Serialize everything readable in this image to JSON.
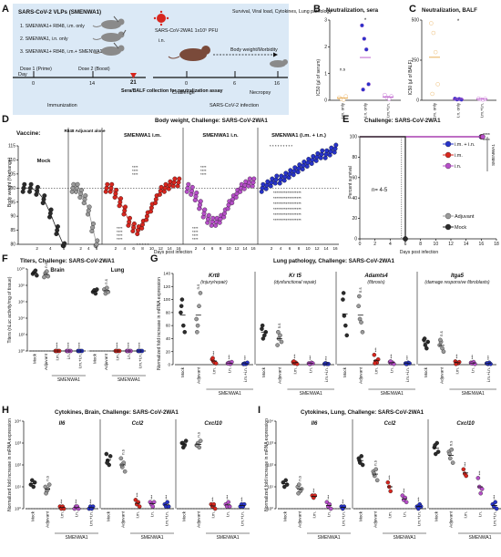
{
  "colors": {
    "mock": "#2b2b2b",
    "adjuvant": "#9a9a9a",
    "im": "#d7261e",
    "in": "#b64fc8",
    "imin": "#2733c9",
    "schemeBg": "#dbe9f6",
    "red": "#d7261e",
    "orange": "#e6a545"
  },
  "panelA": {
    "letter": "A",
    "vlp_title": "SARS-CoV-2 VLPs (SMENWA1)",
    "groups": [
      "1. SMENWA1+ R848, i.m. only",
      "2. SMENWA1, i.n. only",
      "3. SMENWA1+ R848, i.m.+ SMENWA1, i.n."
    ],
    "day_label": "Day",
    "dose1": "Dose 1 (Prime)",
    "dose2": "Dose 2 (Boost)",
    "days": [
      "0",
      "14",
      "21",
      "0",
      "6",
      "16"
    ],
    "immunization": "Immunization",
    "sera": "Sera/BALF collection for neutralization assay",
    "challenge_virus": "SARS-CoV-2WA1 1x10⁵ PFU",
    "route": "i.n.",
    "challenge": "Challenge",
    "necropsy": "Necropsy",
    "body_weight": "Body weight/Morbidity",
    "outcomes": "Survival, Viral load, Cytokines, Lung pathology",
    "infection": "SARS-CoV-2 infection"
  },
  "panelB": {
    "letter": "B",
    "title": "Neutralization, sera",
    "ylabel": "IC50 (µl of serum)",
    "yticks": [
      "0",
      "1",
      "2",
      "3"
    ],
    "xlabels": [
      "i.m. only",
      "i.n. only",
      "i.m.+i.n."
    ],
    "ns": "n.s",
    "star": "*",
    "data": [
      {
        "group": "i.m. only",
        "values": [
          0.1,
          0.05,
          0.02,
          0.15
        ]
      },
      {
        "group": "i.n. only",
        "values": [
          2.8,
          2.3,
          1.9,
          0.6,
          0.4
        ]
      },
      {
        "group": "i.m.+i.n.",
        "values": [
          0.2,
          0.1,
          0.05,
          0.15
        ]
      }
    ]
  },
  "panelC": {
    "letter": "C",
    "title": "Neutralization, BALF",
    "ylabel": "IC50 (µl of BALF)",
    "yticks": [
      "0",
      "250",
      "500"
    ],
    "xlabels": [
      "i.m. only",
      "i.n. only",
      "i.m.+i.n."
    ],
    "star": "*",
    "data": [
      {
        "group": "i.m. only",
        "values": [
          480,
          420,
          300,
          100,
          40
        ]
      },
      {
        "group": "i.n. only",
        "values": [
          10,
          5,
          8,
          4
        ]
      },
      {
        "group": "i.m.+i.n.",
        "values": [
          10,
          6,
          4,
          8
        ]
      }
    ]
  },
  "panelD": {
    "letter": "D",
    "title": "Body weight, Challenge: SARS-CoV-2WA1",
    "vaccine": "Vaccine:",
    "sections": [
      "Mock",
      "R848 Adjuvant alone",
      "SMENWA1 i.m.",
      "SMENWA1 i.n.",
      "SMENWA1 (i.m. + i.n.)"
    ],
    "ylabel": "Body weight (% change)",
    "xlabel": "Days post infection",
    "yticks": [
      "80",
      "85",
      "90",
      "95",
      "100",
      "105",
      "110",
      "115"
    ],
    "xticks": [
      "2",
      "4",
      "6",
      "8",
      "10",
      "12",
      "14",
      "16"
    ],
    "chart_data": {
      "type": "line",
      "y_range": [
        80,
        115
      ],
      "series": [
        {
          "name": "Mock",
          "x": [
            0,
            1,
            2,
            3,
            4,
            5,
            6
          ],
          "values": [
            100,
            100,
            99,
            96,
            91,
            85,
            79
          ]
        },
        {
          "name": "R848 Adjuvant alone",
          "x": [
            0,
            1,
            2,
            3,
            4,
            5,
            6
          ],
          "values": [
            100,
            100,
            98,
            96,
            92,
            86,
            80
          ]
        },
        {
          "name": "SMENWA1 i.m.",
          "x": [
            0,
            1,
            2,
            3,
            4,
            5,
            6,
            7,
            8,
            9,
            10,
            11,
            12,
            13,
            14,
            15,
            16
          ],
          "values": [
            100,
            100,
            98,
            95,
            92,
            88,
            86,
            85,
            87,
            90,
            93,
            96,
            99,
            100,
            101,
            102,
            102
          ]
        },
        {
          "name": "SMENWA1 i.n.",
          "x": [
            0,
            1,
            2,
            3,
            4,
            5,
            6,
            7,
            8,
            9,
            10,
            11,
            12,
            13,
            14,
            15,
            16
          ],
          "values": [
            100,
            99,
            97,
            94,
            91,
            89,
            88,
            88,
            89,
            91,
            94,
            96,
            98,
            100,
            101,
            102,
            102
          ]
        },
        {
          "name": "SMENWA1 (i.m. + i.n.)",
          "x": [
            0,
            1,
            2,
            3,
            4,
            5,
            6,
            7,
            8,
            9,
            10,
            11,
            12,
            13,
            14,
            15,
            16
          ],
          "values": [
            100,
            101,
            102,
            103,
            103,
            104,
            105,
            106,
            107,
            108,
            109,
            110,
            111,
            112,
            112,
            113,
            114
          ]
        }
      ]
    }
  },
  "panelE": {
    "letter": "E",
    "title": "Challenge: SARS-CoV-2WA1",
    "ylabel": "Percent survival",
    "xlabel": "Days post infection",
    "yticks": [
      "0",
      "20",
      "40",
      "60",
      "80",
      "100"
    ],
    "xticks": [
      "0",
      "2",
      "4",
      "6",
      "8",
      "10",
      "12",
      "14",
      "16",
      "18"
    ],
    "n": "n= 4-5",
    "legend": [
      "i.m. + i.n.",
      "i.m.",
      "i.n.",
      "Adjuvant",
      "Mock"
    ],
    "smen": "SMENWA1",
    "sig": [
      "****",
      "****"
    ],
    "chart_data": {
      "type": "line",
      "series": [
        {
          "name": "i.m. + i.n.",
          "x": [
            0,
            16
          ],
          "values": [
            100,
            100
          ]
        },
        {
          "name": "i.m.",
          "x": [
            0,
            16
          ],
          "values": [
            100,
            100
          ]
        },
        {
          "name": "i.n.",
          "x": [
            0,
            16
          ],
          "values": [
            100,
            100
          ]
        },
        {
          "name": "Adjuvant",
          "x": [
            0,
            5,
            6
          ],
          "values": [
            100,
            100,
            0
          ]
        },
        {
          "name": "Mock",
          "x": [
            0,
            5,
            6
          ],
          "values": [
            100,
            100,
            0
          ]
        }
      ]
    }
  },
  "panelF": {
    "letter": "F",
    "title": "Titers, Challenge: SARS-CoV-2WA1",
    "ylabel": "Titers (nLuc activity/mg of tissue)",
    "yticks": [
      "10⁰",
      "10²",
      "10⁴",
      "10⁶",
      "10⁸",
      "10¹⁰"
    ],
    "tissues": [
      "Brain",
      "Lung"
    ],
    "xlabels": [
      "Mock",
      "Adjuvant",
      "i.m.",
      "i.n.",
      "i.m.+i.n."
    ],
    "smen": "SMENWA1",
    "ns": "n.s",
    "sig": "****"
  },
  "panelG": {
    "letter": "G",
    "title": "Lung pathology, Challenge: SARS-CoV-2WA1",
    "ylabel": "Normalized fold increase in mRNA expression",
    "yticks": [
      "0",
      "20",
      "40",
      "60",
      "80",
      "100",
      "120",
      "140"
    ],
    "genes": [
      "Krt8",
      "Kr t5",
      "Adamts4",
      "Itga5"
    ],
    "descs": [
      "(injury/repair)",
      "(dysfunctional repair)",
      "(fibrosis)",
      "(damage responsive fibroblasts)"
    ],
    "xlabels": [
      "Mock",
      "Adjuvant",
      "i.m.",
      "i.n.",
      "i.m.+i.n."
    ],
    "smen": "SMENWA1",
    "ns": "n.s",
    "sig": "***"
  },
  "panelH": {
    "letter": "H",
    "title": "Cytokines, Brain, Challenge: SARS-CoV-2WA1",
    "ylabel": "Normalized fold increase in mRNA expression",
    "yticks": [
      "10⁰",
      "10¹",
      "10²",
      "10³",
      "10⁴"
    ],
    "genes": [
      "Il6",
      "Ccl2",
      "Cxcl10"
    ],
    "xlabels": [
      "Mock",
      "Adjuvant",
      "i.m.",
      "i.n.",
      "i.m.+i.n."
    ],
    "smen": "SMENWA1",
    "ns": "n.s",
    "sig": "***"
  },
  "panelI": {
    "letter": "I",
    "title": "Cytokines, Lung, Challenge: SARS-CoV-2WA1",
    "ylabel": "Normalized fold increase in mRNA expression",
    "yticks": [
      "10⁰",
      "10¹",
      "10²",
      "10³",
      "10⁴"
    ],
    "genes": [
      "Il6",
      "Ccl2",
      "Cxcl10"
    ],
    "xlabels": [
      "Mock",
      "Adjuvant",
      "i.m.",
      "i.n.",
      "i.m.+i.n."
    ],
    "smen": "SMENWA1",
    "ns": "n.s",
    "sig": "***"
  }
}
